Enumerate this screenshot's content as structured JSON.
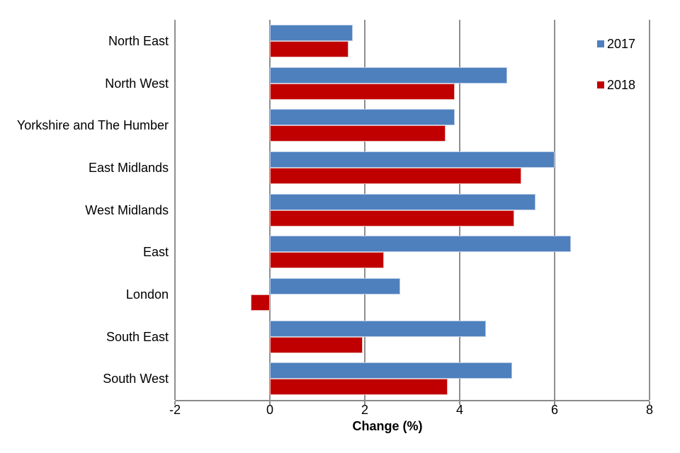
{
  "chart_data": {
    "type": "bar",
    "orientation": "horizontal",
    "title": "",
    "xlabel": "Change (%)",
    "ylabel": "",
    "xlim": [
      -2,
      8
    ],
    "xticks": [
      -2,
      0,
      2,
      4,
      6,
      8
    ],
    "grid": "vertical",
    "legend_position": "top-right",
    "categories": [
      "North East",
      "North West",
      "Yorkshire and The Humber",
      "East Midlands",
      "West Midlands",
      "East",
      "London",
      "South East",
      "South West"
    ],
    "series": [
      {
        "name": "2017",
        "color": "#4e80bd",
        "border_color": "#b7c9e5",
        "values": [
          1.75,
          5.0,
          3.9,
          6.0,
          5.6,
          6.35,
          2.75,
          4.55,
          5.1
        ]
      },
      {
        "name": "2018",
        "color": "#c00000",
        "border_color": "#e9b6b2",
        "values": [
          1.65,
          3.9,
          3.7,
          5.3,
          5.15,
          2.4,
          -0.4,
          1.95,
          3.75
        ]
      }
    ],
    "grid_color": "#8f8f8f",
    "axis_color": "#8a8a8a",
    "text_color": "#000000",
    "background_color": "#ffffff"
  }
}
